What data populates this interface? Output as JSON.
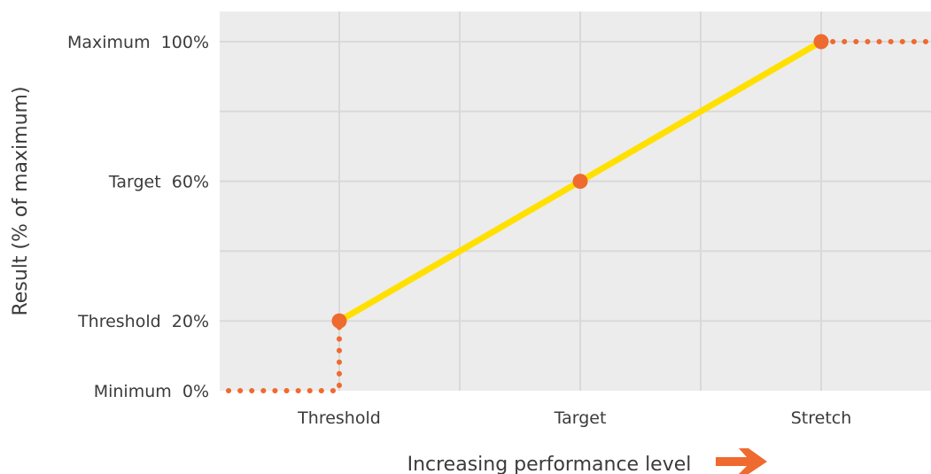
{
  "chart_data": {
    "type": "line",
    "x": [
      "Threshold",
      "Target",
      "Stretch"
    ],
    "xlabel": "Increasing performance level",
    "ylabel": "Result (% of maximum)",
    "y_ticks": [
      {
        "value": 0,
        "label": "Minimum  0%"
      },
      {
        "value": 20,
        "label": "Threshold  20%"
      },
      {
        "value": 60,
        "label": "Target  60%"
      },
      {
        "value": 100,
        "label": "Maximum  100%"
      }
    ],
    "ylim": [
      0,
      110
    ],
    "grid": true,
    "series": [
      {
        "style": "solid",
        "color": "#ffe000",
        "points": [
          [
            "Threshold",
            20
          ],
          [
            "Target",
            60
          ],
          [
            "Stretch",
            100
          ]
        ]
      },
      {
        "style": "dotted",
        "color": "#ef6a2e",
        "points": [
          [
            "below Threshold",
            0
          ],
          [
            "Threshold",
            0
          ],
          [
            "Threshold",
            20
          ]
        ]
      },
      {
        "style": "dotted",
        "color": "#ef6a2e",
        "points": [
          [
            "Stretch",
            100
          ],
          [
            "above Stretch",
            100
          ]
        ]
      }
    ],
    "markers": [
      {
        "x": "Threshold",
        "y": 20
      },
      {
        "x": "Target",
        "y": 60
      },
      {
        "x": "Stretch",
        "y": 100
      }
    ],
    "colors": {
      "plot_bg": "#ececec",
      "grid": "#d9d9d9",
      "marker": "#ef6a2e",
      "arrow": "#ef6a2e",
      "text": "#3b3b3b"
    }
  }
}
